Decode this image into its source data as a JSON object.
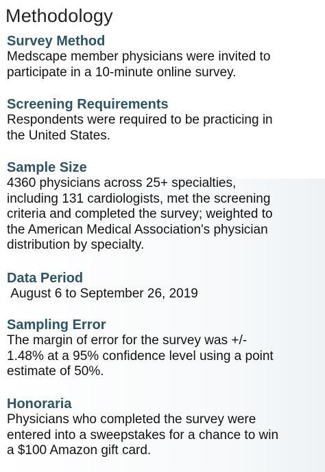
{
  "page": {
    "title": "Methodology"
  },
  "sections": [
    {
      "heading": "Survey Method",
      "text": "Medscape member physicians were invited to\nparticipate in a 10-minute online survey."
    },
    {
      "heading": "Screening Requirements",
      "text": "Respondents were required to be practicing in\nthe United States."
    },
    {
      "heading": "Sample Size",
      "text": "4360 physicians across 25+ specialties,\nincluding 131 cardiologists, met the screening\ncriteria and completed the survey; weighted to\nthe American Medical Association's physician\ndistribution by specialty."
    },
    {
      "heading": "Data Period",
      "text": " August 6 to September 26, 2019"
    },
    {
      "heading": "Sampling Error",
      "text": "The margin of error for the survey was +/-\n1.48% at a 95% confidence level using a point\nestimate of 50%."
    },
    {
      "heading": "Honoraria",
      "text": "Physicians who completed the survey were\nentered into a sweepstakes for a chance to win\na $100 Amazon gift card."
    }
  ]
}
